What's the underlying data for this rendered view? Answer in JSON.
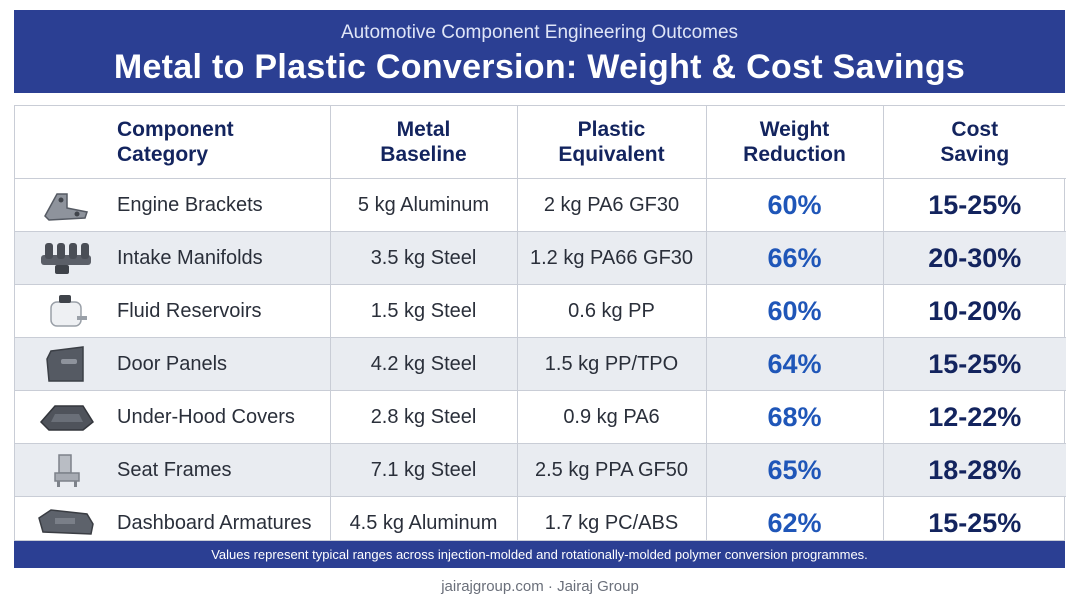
{
  "header": {
    "subtitle": "Automotive Component Engineering Outcomes",
    "title": "Metal to Plastic Conversion: Weight & Cost Savings"
  },
  "table": {
    "columns": [
      "Component\nCategory",
      "Metal\nBaseline",
      "Plastic\nEquivalent",
      "Weight\nReduction",
      "Cost\nSaving"
    ],
    "rows": [
      {
        "component": "Engine Brackets",
        "metal": "5 kg Aluminum",
        "plastic": "2 kg PA6 GF30",
        "weight": "60%",
        "cost": "15-25%",
        "icon": "engine-bracket-icon"
      },
      {
        "component": "Intake Manifolds",
        "metal": "3.5 kg Steel",
        "plastic": "1.2 kg PA66 GF30",
        "weight": "66%",
        "cost": "20-30%",
        "icon": "intake-manifold-icon"
      },
      {
        "component": "Fluid Reservoirs",
        "metal": "1.5 kg Steel",
        "plastic": "0.6 kg PP",
        "weight": "60%",
        "cost": "10-20%",
        "icon": "fluid-reservoir-icon"
      },
      {
        "component": "Door Panels",
        "metal": "4.2 kg Steel",
        "plastic": "1.5 kg PP/TPO",
        "weight": "64%",
        "cost": "15-25%",
        "icon": "door-panel-icon"
      },
      {
        "component": "Under-Hood Covers",
        "metal": "2.8 kg Steel",
        "plastic": "0.9 kg PA6",
        "weight": "68%",
        "cost": "12-22%",
        "icon": "under-hood-cover-icon"
      },
      {
        "component": "Seat Frames",
        "metal": "7.1 kg Steel",
        "plastic": "2.5 kg PPA GF50",
        "weight": "65%",
        "cost": "18-28%",
        "icon": "seat-frame-icon"
      },
      {
        "component": "Dashboard Armatures",
        "metal": "4.5 kg Aluminum",
        "plastic": "1.7 kg PC/ABS",
        "weight": "62%",
        "cost": "15-25%",
        "icon": "dashboard-armature-icon"
      }
    ]
  },
  "footnote": "Values represent typical ranges across injection-molded and rotationally-molded polymer conversion programmes.",
  "credit": "jairajgroup.com · Jairaj Group",
  "colors": {
    "header_bg": "#2b3f93",
    "weight_text": "#1f56b8",
    "cost_text": "#13245e",
    "alt_row": "#e9ecf1"
  }
}
